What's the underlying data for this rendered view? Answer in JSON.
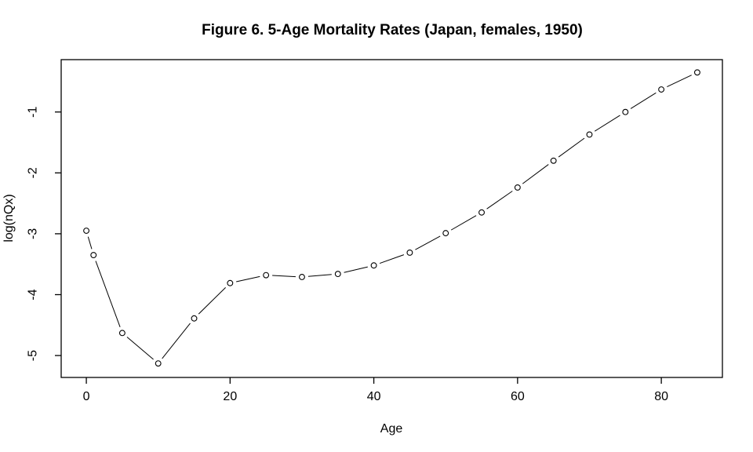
{
  "chart_data": {
    "type": "line",
    "title": "Figure 6. 5-Age Mortality Rates (Japan, females, 1950)",
    "xlabel": "Age",
    "ylabel": "log(nQx)",
    "x": [
      0,
      1,
      5,
      10,
      15,
      20,
      25,
      30,
      35,
      40,
      45,
      50,
      55,
      60,
      65,
      70,
      75,
      80,
      85
    ],
    "y": [
      -2.95,
      -3.35,
      -4.63,
      -5.13,
      -4.39,
      -3.81,
      -3.68,
      -3.71,
      -3.66,
      -3.52,
      -3.31,
      -2.99,
      -2.65,
      -2.24,
      -1.8,
      -1.37,
      -1.0,
      -0.63,
      -0.35
    ],
    "x_ticks": [
      0,
      20,
      40,
      60,
      80
    ],
    "y_ticks": [
      -1,
      -2,
      -3,
      -4,
      -5
    ],
    "xlim": [
      -3.5,
      88.5
    ],
    "ylim": [
      -5.36,
      -0.14
    ],
    "marker": "open-circle",
    "line_style": "points-with-gapped-segments",
    "grid": false,
    "legend": null,
    "line_color": "#000000",
    "background": "#ffffff"
  }
}
